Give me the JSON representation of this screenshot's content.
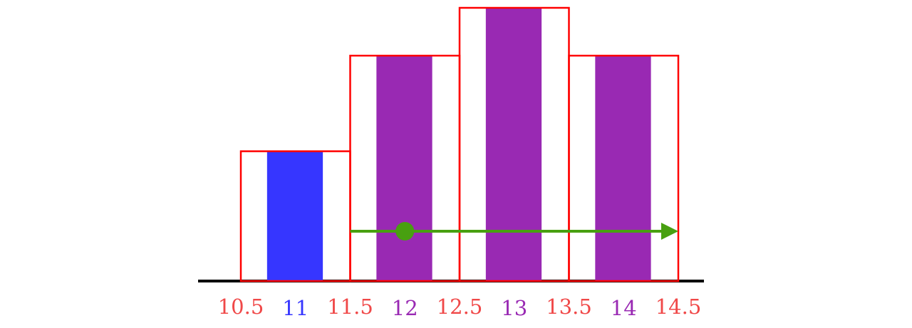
{
  "chart_data": {
    "type": "histogram",
    "bins": [
      10.5,
      11.5,
      12.5,
      13.5,
      14.5
    ],
    "bin_label_color": "#f04848",
    "categories": [
      11,
      12,
      13,
      14
    ],
    "category_colors": [
      "#3636ff",
      "#9929b3",
      "#9929b3",
      "#9929b3"
    ],
    "values": [
      0.19,
      0.33,
      0.4,
      0.33
    ],
    "outline_color": "#ff0000",
    "ylim": [
      0,
      0.4
    ],
    "arrow": {
      "from": 11.5,
      "to": 14.5,
      "point": 12,
      "color": "#48a010"
    }
  }
}
